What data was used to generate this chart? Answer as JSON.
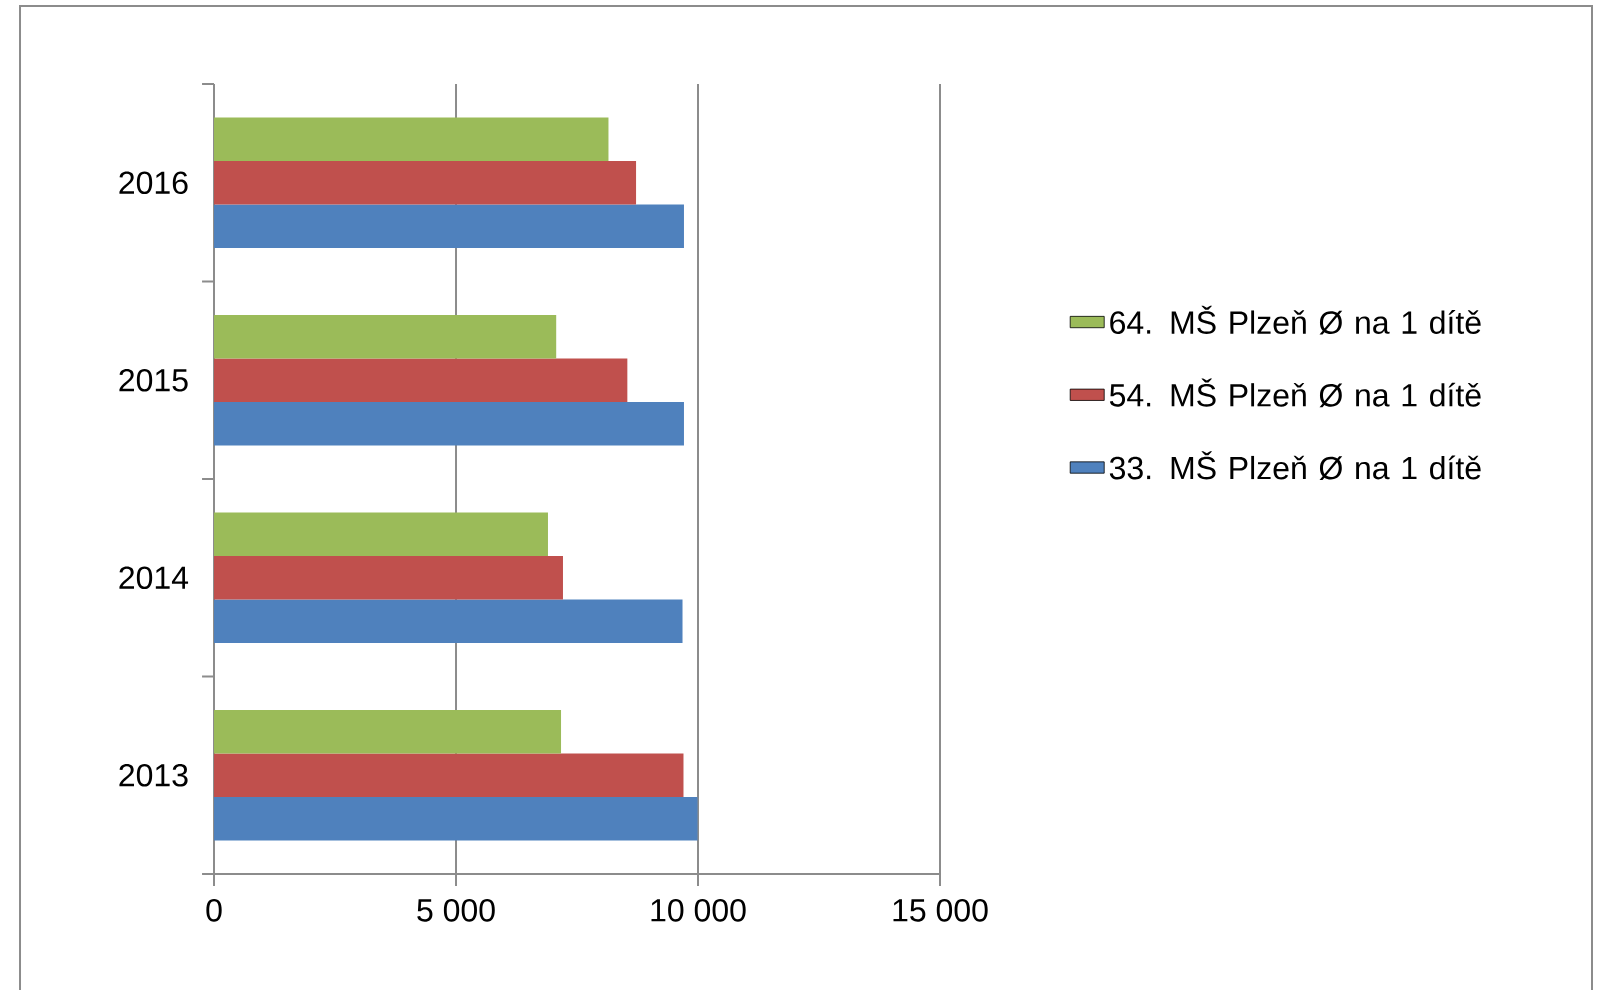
{
  "chart_data": {
    "type": "bar",
    "orientation": "horizontal",
    "categories": [
      "2016",
      "2015",
      "2014",
      "2013"
    ],
    "series": [
      {
        "name": "33. MŠ Plzeň Ø na 1 dítě",
        "color": "#4f81bd",
        "values": [
          9710,
          9710,
          9680,
          9990
        ]
      },
      {
        "name": "54. MŠ Plzeň Ø na 1 dítě",
        "color": "#c0504d",
        "values": [
          8720,
          8540,
          7210,
          9700
        ]
      },
      {
        "name": "64. MŠ Plzeň Ø na 1 dítě",
        "color": "#9bbb59",
        "values": [
          8150,
          7070,
          6900,
          7170
        ]
      }
    ],
    "xlim": [
      0,
      15000
    ],
    "xticks": [
      0,
      {
        "value": 5000,
        "label": "5 000"
      },
      {
        "value": 10000,
        "label": "10 000"
      },
      {
        "value": 15000,
        "label": "15 000"
      }
    ],
    "grid": "x",
    "legend": "right"
  }
}
